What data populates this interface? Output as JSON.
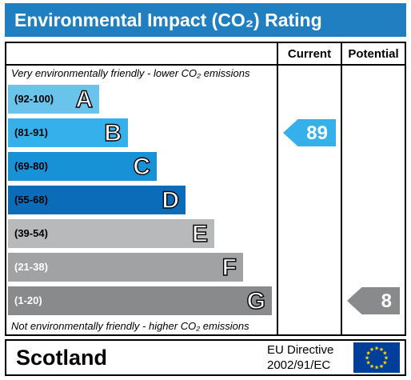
{
  "title": "Environmental Impact (CO₂) Rating",
  "columns": {
    "current": "Current",
    "potential": "Potential"
  },
  "notes": {
    "top": "Very environmentally friendly - lower CO₂ emissions",
    "bottom": "Not environmentally friendly - higher CO₂ emissions"
  },
  "chart_data": {
    "type": "bar",
    "bands": [
      {
        "letter": "A",
        "range": "(92-100)",
        "color": "#6ac3ea",
        "range_color": "#000000"
      },
      {
        "letter": "B",
        "range": "(81-91)",
        "color": "#35b0ea",
        "range_color": "#000000"
      },
      {
        "letter": "C",
        "range": "(69-80)",
        "color": "#1792d7",
        "range_color": "#000000"
      },
      {
        "letter": "D",
        "range": "(55-68)",
        "color": "#0b6dba",
        "range_color": "#000000"
      },
      {
        "letter": "E",
        "range": "(39-54)",
        "color": "#b8b9ba",
        "range_color": "#000000"
      },
      {
        "letter": "F",
        "range": "(21-38)",
        "color": "#a1a2a3",
        "range_color": "#ffffff"
      },
      {
        "letter": "G",
        "range": "(1-20)",
        "color": "#898a8b",
        "range_color": "#ffffff"
      }
    ],
    "current": {
      "value": 89,
      "band": "B",
      "color": "#35b0ea"
    },
    "potential": {
      "value": 8,
      "band": "G",
      "color": "#898a8b"
    }
  },
  "footer": {
    "country": "Scotland",
    "directive_line1": "EU Directive",
    "directive_line2": "2002/91/EC"
  },
  "colors": {
    "header_bg": "#1f7fc1",
    "flag_bg": "#003f99",
    "flag_stars": "#ffdd00"
  }
}
